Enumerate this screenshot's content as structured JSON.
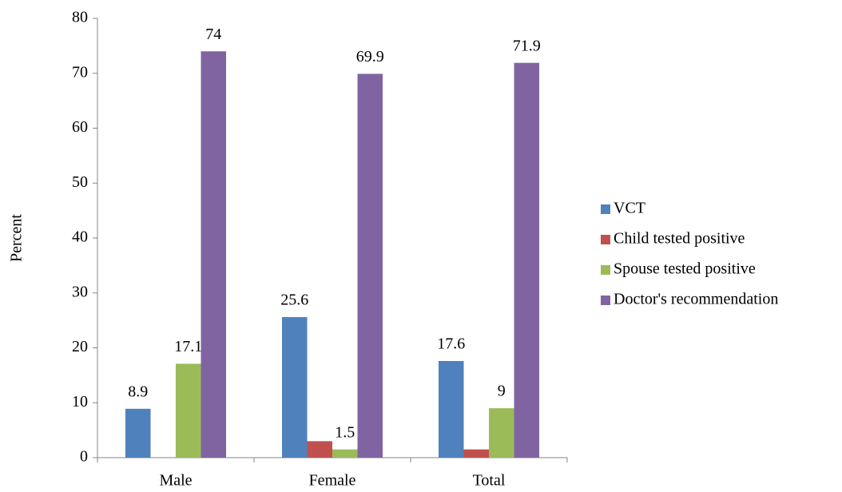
{
  "chart_data": {
    "type": "bar",
    "y_label": "Percent",
    "categories": [
      "Male",
      "Female",
      "Total"
    ],
    "series": [
      {
        "name": "VCT",
        "color": "#4f81bd",
        "values": [
          8.9,
          25.6,
          17.6
        ],
        "show_labels": true
      },
      {
        "name": "Child tested positive",
        "color": "#c0504d",
        "values": [
          0,
          3,
          1.5
        ],
        "show_labels": false
      },
      {
        "name": "Spouse tested positive",
        "color": "#9bbb59",
        "values": [
          17.1,
          1.5,
          9
        ],
        "show_labels": true
      },
      {
        "name": "Doctor's recommendation",
        "color": "#8064a2",
        "values": [
          74,
          69.9,
          71.9
        ],
        "show_labels": true
      }
    ],
    "ylim": [
      0,
      80
    ],
    "yticks": [
      0,
      10,
      20,
      30,
      40,
      50,
      60,
      70,
      80
    ],
    "grid": false,
    "legend": "right"
  }
}
